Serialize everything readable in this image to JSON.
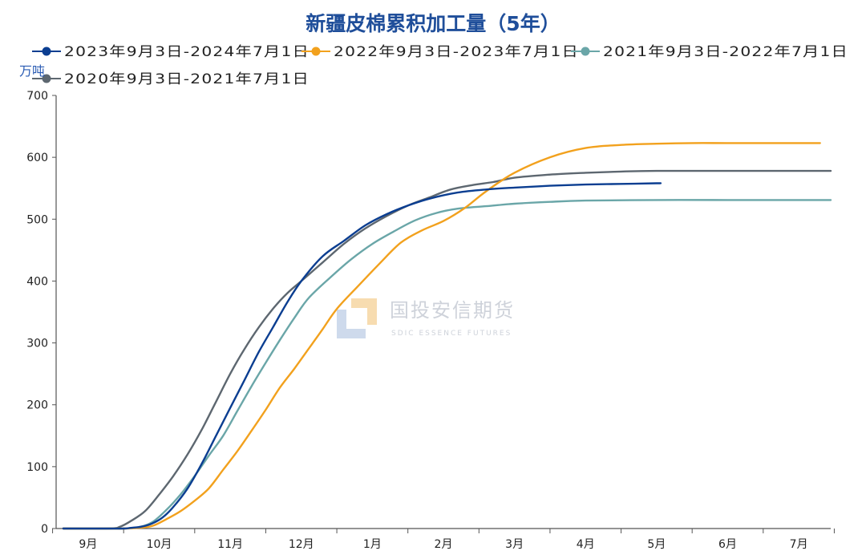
{
  "chart_data": {
    "type": "line",
    "title": "新疆皮棉累积加工量（5年）",
    "ylabel": "万吨",
    "xlabel": "",
    "ylim": [
      0,
      700
    ],
    "yticks": [
      0,
      100,
      200,
      300,
      400,
      500,
      600,
      700
    ],
    "x_unit": "month index from 9月 (0 = 9月)",
    "xlim": [
      -0.45,
      10.45
    ],
    "categories": [
      "9月",
      "10月",
      "11月",
      "12月",
      "1月",
      "2月",
      "3月",
      "4月",
      "5月",
      "6月",
      "7月"
    ],
    "legend_position": "top-left",
    "grid": false,
    "series": [
      {
        "name": "2023年9月3日-2024年7月1日",
        "color": "#0B3E91",
        "x": [
          -0.35,
          0.3,
          0.5,
          0.6,
          0.75,
          0.9,
          1.05,
          1.2,
          1.4,
          1.6,
          1.8,
          2.0,
          2.2,
          2.4,
          2.6,
          2.8,
          3.0,
          3.3,
          3.6,
          3.9,
          4.2,
          4.5,
          4.8,
          5.2,
          5.6,
          6.0,
          6.5,
          7.0,
          7.5,
          8.0,
          8.05
        ],
        "values": [
          0,
          0,
          0,
          1,
          3,
          8,
          18,
          35,
          65,
          105,
          150,
          195,
          240,
          285,
          325,
          365,
          400,
          440,
          465,
          490,
          508,
          522,
          533,
          543,
          548,
          551,
          554,
          556,
          557,
          558,
          558
        ]
      },
      {
        "name": "2022年9月3日-2023年7月1日",
        "color": "#F2A11D",
        "x": [
          -0.35,
          0.3,
          0.5,
          0.7,
          0.9,
          1.1,
          1.3,
          1.5,
          1.7,
          1.9,
          2.1,
          2.3,
          2.5,
          2.7,
          2.9,
          3.1,
          3.3,
          3.5,
          3.8,
          4.1,
          4.4,
          4.7,
          5.0,
          5.3,
          5.6,
          6.0,
          6.5,
          7.0,
          7.5,
          8.0,
          8.5,
          9.0,
          10.0,
          10.3
        ],
        "values": [
          0,
          0,
          0,
          1,
          4,
          15,
          28,
          45,
          65,
          95,
          125,
          158,
          192,
          228,
          258,
          290,
          322,
          355,
          392,
          428,
          462,
          482,
          497,
          518,
          545,
          575,
          600,
          615,
          620,
          622,
          623,
          623,
          623,
          623
        ]
      },
      {
        "name": "2021年9月3日-2022年7月1日",
        "color": "#6AA6A8",
        "x": [
          -0.35,
          0.3,
          0.5,
          0.7,
          0.9,
          1.1,
          1.3,
          1.5,
          1.7,
          1.9,
          2.1,
          2.3,
          2.5,
          2.7,
          2.9,
          3.1,
          3.4,
          3.7,
          4.0,
          4.3,
          4.6,
          4.9,
          5.2,
          5.6,
          6.0,
          6.5,
          7.0,
          8.0,
          9.0,
          10.45
        ],
        "values": [
          0,
          0,
          0,
          2,
          10,
          30,
          55,
          85,
          118,
          150,
          190,
          230,
          268,
          305,
          340,
          372,
          405,
          435,
          460,
          480,
          498,
          510,
          517,
          521,
          525,
          528,
          530,
          531,
          531,
          531
        ]
      },
      {
        "name": "2020年9月3日-2021年7月1日",
        "color": "#5D6770",
        "x": [
          -0.35,
          0.3,
          0.45,
          0.6,
          0.8,
          1.0,
          1.2,
          1.4,
          1.6,
          1.8,
          2.0,
          2.2,
          2.4,
          2.6,
          2.8,
          3.0,
          3.3,
          3.6,
          3.9,
          4.2,
          4.5,
          4.8,
          5.1,
          5.4,
          5.7,
          6.0,
          6.5,
          7.0,
          7.5,
          8.0,
          9.0,
          10.45
        ],
        "values": [
          0,
          0,
          3,
          12,
          28,
          55,
          85,
          120,
          160,
          205,
          250,
          290,
          325,
          355,
          380,
          400,
          430,
          460,
          485,
          505,
          522,
          535,
          548,
          555,
          560,
          567,
          572,
          575,
          577,
          578,
          578,
          578
        ]
      }
    ]
  },
  "watermark": {
    "text_cn": "国投安信期货",
    "text_en": "SDIC ESSENCE FUTURES"
  }
}
